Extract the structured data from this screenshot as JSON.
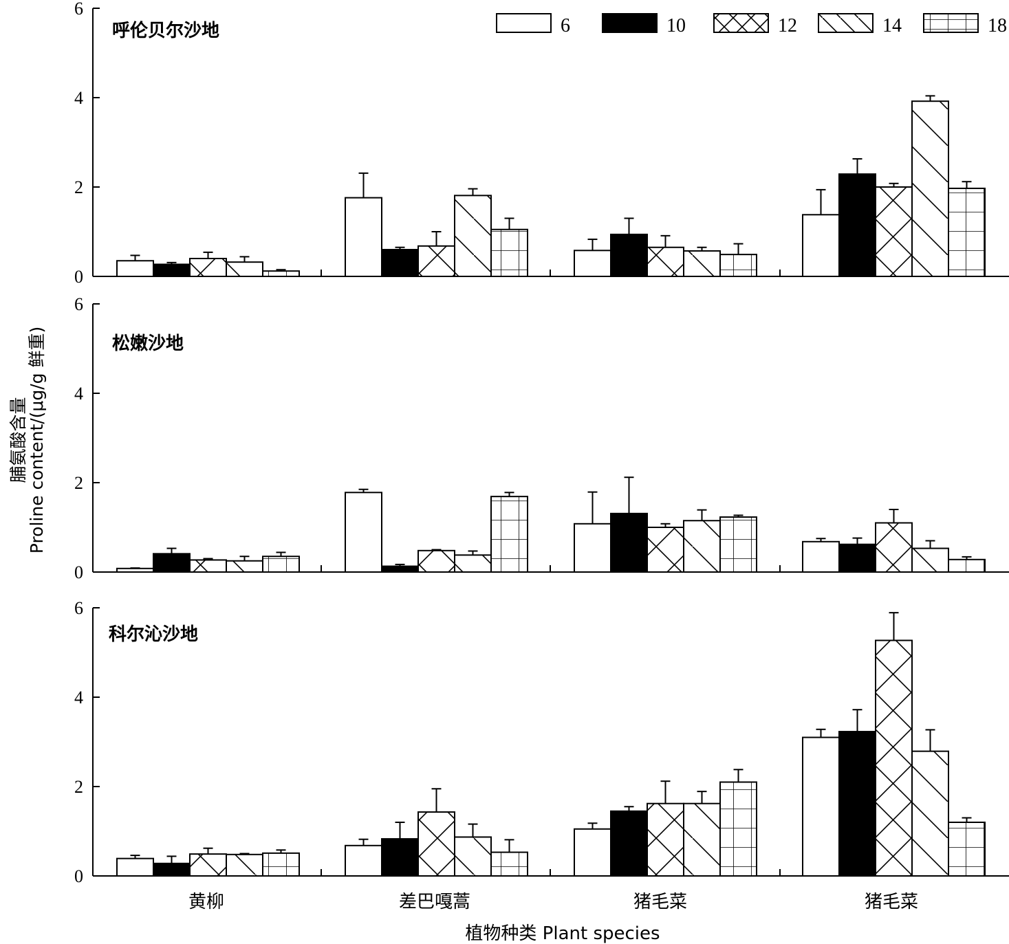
{
  "chart_data": {
    "type": "bar",
    "xlabel": "植物种类 Plant species",
    "ylabel_cn": "脯氨酸含量",
    "ylabel_en": "Proline content/(μg/g 鲜重)",
    "categories": [
      "黄柳",
      "差巴嘎蒿",
      "猪毛菜",
      "猪毛菜"
    ],
    "ylim": [
      0,
      6
    ],
    "yticks": [
      "0",
      "2",
      "4",
      "6"
    ],
    "legend_position": "top-right",
    "series": [
      {
        "name": "6",
        "pattern": "white"
      },
      {
        "name": "10",
        "pattern": "black"
      },
      {
        "name": "12",
        "pattern": "crosshatch"
      },
      {
        "name": "14",
        "pattern": "diagonal"
      },
      {
        "name": "18",
        "pattern": "grid"
      }
    ],
    "panels": [
      {
        "title": "呼伦贝尔沙地",
        "values": [
          [
            0.35,
            0.27,
            0.4,
            0.32,
            0.12
          ],
          [
            1.76,
            0.6,
            0.68,
            1.81,
            1.05
          ],
          [
            0.58,
            0.94,
            0.65,
            0.57,
            0.49
          ],
          [
            1.38,
            2.29,
            2.0,
            3.92,
            1.97
          ]
        ],
        "errors": [
          [
            0.12,
            0.04,
            0.14,
            0.12,
            0.03
          ],
          [
            0.55,
            0.05,
            0.32,
            0.15,
            0.25
          ],
          [
            0.25,
            0.36,
            0.26,
            0.08,
            0.24
          ],
          [
            0.56,
            0.34,
            0.08,
            0.12,
            0.15
          ]
        ]
      },
      {
        "title": "松嫩沙地",
        "values": [
          [
            0.08,
            0.41,
            0.27,
            0.25,
            0.35
          ],
          [
            1.78,
            0.13,
            0.48,
            0.38,
            1.69
          ],
          [
            1.08,
            1.31,
            1.0,
            1.15,
            1.23
          ],
          [
            0.68,
            0.62,
            1.1,
            0.53,
            0.28
          ]
        ],
        "errors": [
          [
            0.01,
            0.12,
            0.03,
            0.1,
            0.09
          ],
          [
            0.07,
            0.04,
            0.02,
            0.09,
            0.09
          ],
          [
            0.71,
            0.81,
            0.08,
            0.24,
            0.04
          ],
          [
            0.07,
            0.14,
            0.3,
            0.17,
            0.06
          ]
        ]
      },
      {
        "title": "科尔沁沙地",
        "values": [
          [
            0.39,
            0.28,
            0.49,
            0.48,
            0.51
          ],
          [
            0.68,
            0.83,
            1.43,
            0.87,
            0.53
          ],
          [
            1.05,
            1.45,
            1.62,
            1.62,
            2.1
          ],
          [
            3.1,
            3.23,
            5.27,
            2.79,
            1.2
          ]
        ],
        "errors": [
          [
            0.07,
            0.16,
            0.13,
            0.02,
            0.07
          ],
          [
            0.14,
            0.37,
            0.52,
            0.29,
            0.28
          ],
          [
            0.13,
            0.1,
            0.5,
            0.27,
            0.28
          ],
          [
            0.18,
            0.49,
            0.62,
            0.48,
            0.1
          ]
        ]
      }
    ]
  }
}
